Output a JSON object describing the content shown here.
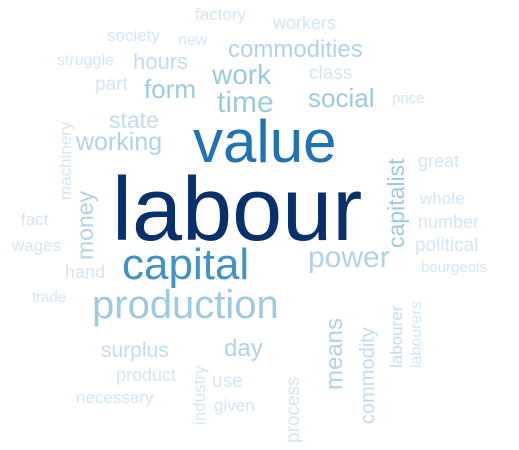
{
  "words": [
    {
      "key": "labour",
      "text": "labour",
      "color": "#08306b"
    },
    {
      "key": "value",
      "text": "value",
      "color": "#2171b5"
    },
    {
      "key": "capital",
      "text": "capital",
      "color": "#4292c6"
    },
    {
      "key": "production",
      "text": "production",
      "color": "#9ecae1"
    },
    {
      "key": "time",
      "text": "time",
      "color": "#9ecae1"
    },
    {
      "key": "work",
      "text": "work",
      "color": "#9ecae1"
    },
    {
      "key": "commodities",
      "text": "commodities",
      "color": "#b3d2e9"
    },
    {
      "key": "social",
      "text": "social",
      "color": "#9ecae1"
    },
    {
      "key": "form",
      "text": "form",
      "color": "#9ecae1"
    },
    {
      "key": "working",
      "text": "working",
      "color": "#b3d2e9"
    },
    {
      "key": "state",
      "text": "state",
      "color": "#c6dbef"
    },
    {
      "key": "hours",
      "text": "hours",
      "color": "#c6dbef"
    },
    {
      "key": "money",
      "text": "money",
      "color": "#b3d2e9"
    },
    {
      "key": "power",
      "text": "power",
      "color": "#b3d2e9"
    },
    {
      "key": "capitalist",
      "text": "capitalist",
      "color": "#9ecae1"
    },
    {
      "key": "day",
      "text": "day",
      "color": "#b3d2e9"
    },
    {
      "key": "surplus",
      "text": "surplus",
      "color": "#c6dbef"
    },
    {
      "key": "means",
      "text": "means",
      "color": "#b3d2e9"
    },
    {
      "key": "commodity",
      "text": "commodity",
      "color": "#c6dbef"
    },
    {
      "key": "labourer",
      "text": "labourer",
      "color": "#c6dbef"
    },
    {
      "key": "labourers",
      "text": "labourers",
      "color": "#d6e6f4"
    },
    {
      "key": "process",
      "text": "process",
      "color": "#d6e6f4"
    },
    {
      "key": "industry",
      "text": "industry",
      "color": "#d6e6f4"
    },
    {
      "key": "product",
      "text": "product",
      "color": "#d6e6f4"
    },
    {
      "key": "use",
      "text": "use",
      "color": "#d6e6f4"
    },
    {
      "key": "given",
      "text": "given",
      "color": "#d6e6f4"
    },
    {
      "key": "necessary",
      "text": "necessary",
      "color": "#d6e6f4"
    },
    {
      "key": "trade",
      "text": "trade",
      "color": "#d6e6f4"
    },
    {
      "key": "hand",
      "text": "hand",
      "color": "#d6e6f4"
    },
    {
      "key": "wages",
      "text": "wages",
      "color": "#d6e6f4"
    },
    {
      "key": "fact",
      "text": "fact",
      "color": "#d6e6f4"
    },
    {
      "key": "machinery",
      "text": "machinery",
      "color": "#d6e6f4"
    },
    {
      "key": "struggle",
      "text": "struggle",
      "color": "#d6e6f4"
    },
    {
      "key": "part",
      "text": "part",
      "color": "#d6e6f4"
    },
    {
      "key": "society",
      "text": "society",
      "color": "#d6e6f4"
    },
    {
      "key": "new",
      "text": "new",
      "color": "#d6e6f4"
    },
    {
      "key": "factory",
      "text": "factory",
      "color": "#d6e6f4"
    },
    {
      "key": "workers",
      "text": "workers",
      "color": "#d6e6f4"
    },
    {
      "key": "class",
      "text": "class",
      "color": "#d6e6f4"
    },
    {
      "key": "price",
      "text": "price",
      "color": "#d6e6f4"
    },
    {
      "key": "great",
      "text": "great",
      "color": "#d6e6f4"
    },
    {
      "key": "whole",
      "text": "whole",
      "color": "#d6e6f4"
    },
    {
      "key": "number",
      "text": "number",
      "color": "#d6e6f4"
    },
    {
      "key": "political",
      "text": "political",
      "color": "#d6e6f4"
    },
    {
      "key": "bourgeois",
      "text": "bourgeois",
      "color": "#d6e6f4"
    }
  ]
}
